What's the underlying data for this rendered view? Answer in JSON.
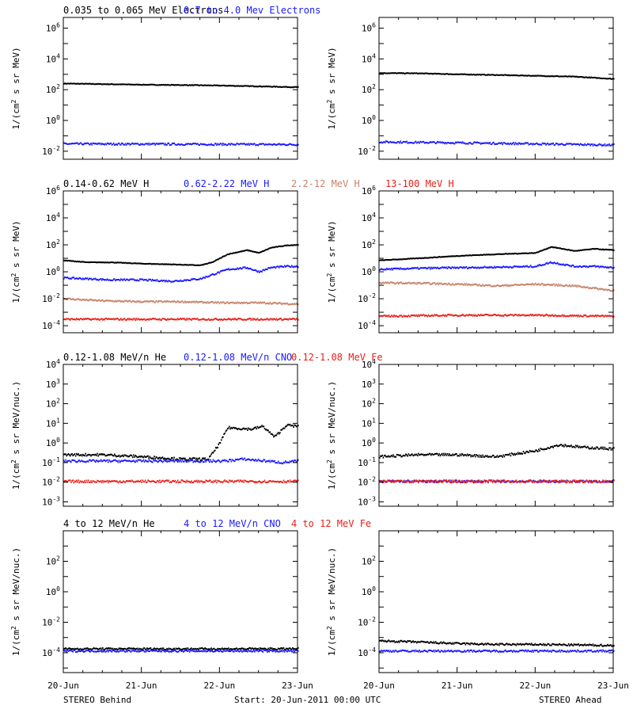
{
  "colors": {
    "black": "#000000",
    "blue": "#1a1aff",
    "tan": "#c8826a",
    "red": "#e8201a"
  },
  "footer": {
    "left": "STEREO Behind",
    "center": "Start: 20-Jun-2011 00:00 UTC",
    "right": "STEREO Ahead"
  },
  "x_ticks": [
    "20-Jun",
    "21-Jun",
    "22-Jun",
    "23-Jun"
  ],
  "chart_data": [
    {
      "type": "scatter",
      "id": "electrons-behind",
      "row": 0,
      "col": 0,
      "headers": [
        {
          "text": "0.035 to 0.065 MeV Electrons",
          "color": "black"
        },
        {
          "text": "0.7 to 4.0 Mev Electrons",
          "color": "blue"
        }
      ],
      "ylabel": "1/(cm2 s sr MeV)",
      "yscale": "log",
      "ylim": [
        0.003,
        5000000
      ],
      "yticks": [
        [
          -2,
          "10-2"
        ],
        [
          0,
          "100"
        ],
        [
          2,
          "102"
        ],
        [
          4,
          "104"
        ],
        [
          6,
          "106"
        ]
      ],
      "xlim": [
        0,
        3
      ],
      "series": [
        {
          "color": "black",
          "x": [
            0,
            0.5,
            1,
            1.5,
            2,
            2.5,
            3
          ],
          "y": [
            250,
            230,
            210,
            200,
            185,
            165,
            145
          ]
        },
        {
          "color": "blue",
          "x": [
            0,
            1,
            2,
            3
          ],
          "y": [
            0.03,
            0.029,
            0.028,
            0.027
          ]
        }
      ]
    },
    {
      "type": "scatter",
      "id": "electrons-ahead",
      "row": 0,
      "col": 1,
      "headers": [],
      "ylabel": "1/(cm2 s sr MeV)",
      "yscale": "log",
      "ylim": [
        0.003,
        5000000
      ],
      "yticks": [
        [
          -2,
          "10-2"
        ],
        [
          0,
          "100"
        ],
        [
          2,
          "102"
        ],
        [
          4,
          "104"
        ],
        [
          6,
          "106"
        ]
      ],
      "xlim": [
        0,
        3
      ],
      "series": [
        {
          "color": "black",
          "x": [
            0,
            0.5,
            1,
            1.5,
            2,
            2.5,
            3
          ],
          "y": [
            1200,
            1150,
            1000,
            900,
            800,
            700,
            500
          ]
        },
        {
          "color": "blue",
          "x": [
            0,
            1,
            2,
            3
          ],
          "y": [
            0.04,
            0.035,
            0.03,
            0.025
          ]
        }
      ]
    },
    {
      "type": "scatter",
      "id": "protons-behind",
      "row": 1,
      "col": 0,
      "headers": [
        {
          "text": "0.14-0.62 MeV H",
          "color": "black"
        },
        {
          "text": "0.62-2.22 MeV H",
          "color": "blue"
        },
        {
          "text": "2.2-12 MeV H",
          "color": "tan"
        },
        {
          "text": "13-100 MeV H",
          "color": "red"
        }
      ],
      "ylabel": "1/(cm2 s sr MeV)",
      "yscale": "log",
      "ylim": [
        3e-05,
        1000000
      ],
      "yticks": [
        [
          -4,
          "10-4"
        ],
        [
          -2,
          "10-2"
        ],
        [
          0,
          "100"
        ],
        [
          2,
          "102"
        ],
        [
          4,
          "104"
        ],
        [
          6,
          "106"
        ]
      ],
      "xlim": [
        0,
        3
      ],
      "series": [
        {
          "color": "black",
          "x": [
            0,
            0.3,
            0.6,
            1,
            1.4,
            1.75,
            1.9,
            2.1,
            2.35,
            2.5,
            2.65,
            2.85,
            3
          ],
          "y": [
            7,
            5,
            5,
            4,
            3.5,
            3,
            5,
            20,
            40,
            25,
            60,
            90,
            100
          ]
        },
        {
          "color": "blue",
          "x": [
            0,
            0.3,
            0.6,
            1,
            1.4,
            1.75,
            1.9,
            2.1,
            2.35,
            2.5,
            2.65,
            2.85,
            3
          ],
          "y": [
            0.35,
            0.3,
            0.25,
            0.25,
            0.2,
            0.3,
            0.6,
            1.5,
            2,
            1,
            2,
            2.5,
            2.5
          ]
        },
        {
          "color": "tan",
          "x": [
            0,
            0.5,
            1,
            1.5,
            2,
            2.5,
            3
          ],
          "y": [
            0.01,
            0.007,
            0.006,
            0.006,
            0.005,
            0.005,
            0.004
          ]
        },
        {
          "color": "red",
          "x": [
            0,
            1,
            2,
            3
          ],
          "y": [
            0.0003,
            0.0003,
            0.0003,
            0.0003
          ]
        }
      ]
    },
    {
      "type": "scatter",
      "id": "protons-ahead",
      "row": 1,
      "col": 1,
      "headers": [],
      "ylabel": "1/(cm2 s sr MeV)",
      "yscale": "log",
      "ylim": [
        3e-05,
        1000000
      ],
      "yticks": [
        [
          -4,
          "10-4"
        ],
        [
          -2,
          "10-2"
        ],
        [
          0,
          "100"
        ],
        [
          2,
          "102"
        ],
        [
          4,
          "104"
        ],
        [
          6,
          "106"
        ]
      ],
      "xlim": [
        0,
        3
      ],
      "series": [
        {
          "color": "black",
          "x": [
            0,
            0.5,
            1,
            1.5,
            2,
            2.2,
            2.5,
            2.75,
            3
          ],
          "y": [
            7,
            10,
            15,
            20,
            25,
            70,
            35,
            50,
            40
          ]
        },
        {
          "color": "blue",
          "x": [
            0,
            0.5,
            1,
            1.5,
            2,
            2.2,
            2.5,
            2.75,
            3
          ],
          "y": [
            1.5,
            1.8,
            2,
            2.2,
            2.5,
            5,
            2.5,
            2.5,
            2
          ]
        },
        {
          "color": "tan",
          "x": [
            0,
            0.5,
            1,
            1.5,
            2,
            2.5,
            3
          ],
          "y": [
            0.15,
            0.14,
            0.12,
            0.09,
            0.12,
            0.09,
            0.04
          ]
        },
        {
          "color": "red",
          "x": [
            0,
            1,
            2,
            3
          ],
          "y": [
            0.0005,
            0.0006,
            0.0006,
            0.0005
          ]
        }
      ]
    },
    {
      "type": "scatter",
      "id": "heavy-low-behind",
      "row": 2,
      "col": 0,
      "headers": [
        {
          "text": "0.12-1.08 MeV/n He",
          "color": "black"
        },
        {
          "text": "0.12-1.08 MeV/n CNO",
          "color": "blue"
        },
        {
          "text": "0.12-1.08 MeV Fe",
          "color": "red"
        }
      ],
      "ylabel": "1/(cm2 s sr MeV/nuc.)",
      "yscale": "log",
      "ylim": [
        0.0006,
        10000
      ],
      "yticks": [
        [
          -3,
          "10-3"
        ],
        [
          -2,
          "10-2"
        ],
        [
          -1,
          "10-1"
        ],
        [
          0,
          "100"
        ],
        [
          1,
          "101"
        ],
        [
          2,
          "102"
        ],
        [
          3,
          "103"
        ],
        [
          4,
          "104"
        ]
      ],
      "xlim": [
        0,
        3
      ],
      "series": [
        {
          "color": "black",
          "x": [
            0,
            0.5,
            1,
            1.5,
            1.85,
            2,
            2.1,
            2.4,
            2.55,
            2.7,
            2.85,
            3
          ],
          "y": [
            0.25,
            0.25,
            0.2,
            0.15,
            0.15,
            1,
            6,
            5,
            7,
            2,
            8,
            7
          ]
        },
        {
          "color": "blue",
          "x": [
            2.05,
            2.3,
            2.6,
            2.8,
            3
          ],
          "y": [
            0.12,
            0.15,
            0.12,
            0.1,
            0.12
          ]
        },
        {
          "color": "red",
          "x": [
            0,
            3
          ],
          "y": [
            0.011,
            0.011
          ]
        }
      ]
    },
    {
      "type": "scatter",
      "id": "heavy-low-ahead",
      "row": 2,
      "col": 1,
      "headers": [],
      "ylabel": "1/(cm2 s sr MeV/nuc.)",
      "yscale": "log",
      "ylim": [
        0.0006,
        10000
      ],
      "yticks": [
        [
          -3,
          "10-3"
        ],
        [
          -2,
          "10-2"
        ],
        [
          -1,
          "10-1"
        ],
        [
          0,
          "100"
        ],
        [
          1,
          "101"
        ],
        [
          2,
          "102"
        ],
        [
          3,
          "103"
        ],
        [
          4,
          "104"
        ]
      ],
      "xlim": [
        0,
        3
      ],
      "series": [
        {
          "color": "black",
          "x": [
            0,
            0.5,
            1,
            1.5,
            2,
            2.3,
            2.6,
            3
          ],
          "y": [
            0.2,
            0.25,
            0.25,
            0.2,
            0.4,
            0.8,
            0.6,
            0.5
          ]
        },
        {
          "color": "blue",
          "x": [
            0,
            3
          ],
          "y": [
            0.011,
            0.011
          ]
        },
        {
          "color": "red",
          "x": [
            0,
            3
          ],
          "y": [
            0.011,
            0.011
          ]
        }
      ]
    },
    {
      "type": "scatter",
      "id": "heavy-high-behind",
      "row": 3,
      "col": 0,
      "headers": [
        {
          "text": "4 to 12 MeV/n He",
          "color": "black"
        },
        {
          "text": "4 to 12 MeV/n CNO",
          "color": "blue"
        },
        {
          "text": "4 to 12 MeV Fe",
          "color": "red"
        }
      ],
      "ylabel": "1/(cm2 s sr MeV/nuc.)",
      "yscale": "log",
      "ylim": [
        5e-06,
        10000
      ],
      "yticks": [
        [
          -4,
          "10-4"
        ],
        [
          -2,
          "10-2"
        ],
        [
          0,
          "100"
        ],
        [
          2,
          "102"
        ]
      ],
      "xlim": [
        0,
        3
      ],
      "series": [
        {
          "color": "black",
          "x": [
            0,
            3
          ],
          "y": [
            0.00018,
            0.00018
          ]
        },
        {
          "color": "blue",
          "x": [
            0,
            3
          ],
          "y": [
            0.00013,
            0.00013
          ]
        }
      ]
    },
    {
      "type": "scatter",
      "id": "heavy-high-ahead",
      "row": 3,
      "col": 1,
      "headers": [],
      "ylabel": "1/(cm2 s sr MeV/nuc.)",
      "yscale": "log",
      "ylim": [
        5e-06,
        10000
      ],
      "yticks": [
        [
          -4,
          "10-4"
        ],
        [
          -2,
          "10-2"
        ],
        [
          0,
          "100"
        ],
        [
          2,
          "102"
        ]
      ],
      "xlim": [
        0,
        3
      ],
      "series": [
        {
          "color": "black",
          "x": [
            0,
            0.5,
            1,
            1.5,
            2,
            3
          ],
          "y": [
            0.0006,
            0.0005,
            0.0004,
            0.00035,
            0.00035,
            0.0003
          ]
        },
        {
          "color": "blue",
          "x": [
            0,
            3
          ],
          "y": [
            0.00013,
            0.00013
          ]
        }
      ]
    }
  ]
}
